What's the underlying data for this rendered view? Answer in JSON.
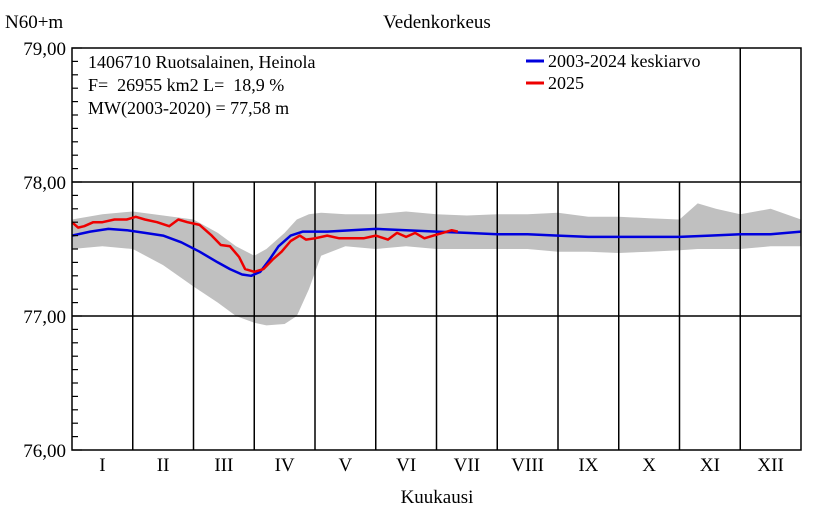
{
  "chart_data": {
    "type": "line",
    "title": "Vedenkorkeus",
    "ylabel": "N60+m",
    "xlabel": "Kuukausi",
    "ylim": [
      76.0,
      79.0
    ],
    "yticks": [
      "79,00",
      "78,00",
      "77,00",
      "76,00"
    ],
    "ytick_values": [
      79.0,
      78.0,
      77.0,
      76.0
    ],
    "months": [
      "I",
      "II",
      "III",
      "IV",
      "V",
      "VI",
      "VII",
      "VIII",
      "IX",
      "X",
      "XI",
      "XII"
    ],
    "info_lines": [
      "1406710 Ruotsalainen, Heinola",
      "F=  26955 km2 L=  18,9 %",
      "MW(2003-2020) = 77,58 m"
    ],
    "grid": true,
    "legend_position": "top-right",
    "series": [
      {
        "name": "2003-2024 keskiarvo",
        "color": "#0000dd",
        "x": [
          0,
          0.3,
          0.6,
          0.9,
          1.2,
          1.5,
          1.8,
          2.1,
          2.4,
          2.6,
          2.8,
          2.95,
          3.1,
          3.25,
          3.4,
          3.6,
          3.8,
          4.0,
          4.2,
          4.6,
          5.0,
          5.5,
          6.0,
          6.5,
          7.0,
          7.5,
          8.0,
          8.5,
          9.0,
          9.5,
          10.0,
          10.5,
          11.0,
          11.5,
          12.0
        ],
        "y": [
          77.6,
          77.63,
          77.65,
          77.64,
          77.62,
          77.6,
          77.55,
          77.48,
          77.4,
          77.35,
          77.31,
          77.3,
          77.33,
          77.42,
          77.52,
          77.6,
          77.63,
          77.63,
          77.63,
          77.64,
          77.65,
          77.64,
          77.63,
          77.62,
          77.61,
          77.61,
          77.6,
          77.59,
          77.59,
          77.59,
          77.59,
          77.6,
          77.61,
          77.61,
          77.63
        ]
      },
      {
        "name": "2025",
        "color": "#ee0000",
        "x": [
          0,
          0.1,
          0.2,
          0.35,
          0.5,
          0.7,
          0.9,
          1.05,
          1.2,
          1.4,
          1.6,
          1.75,
          1.9,
          2.1,
          2.3,
          2.45,
          2.6,
          2.75,
          2.85,
          3.0,
          3.15,
          3.3,
          3.45,
          3.6,
          3.75,
          3.85,
          4.0,
          4.2,
          4.4,
          4.6,
          4.8,
          5.0,
          5.2,
          5.35,
          5.5,
          5.65,
          5.8,
          5.95,
          6.1,
          6.25,
          6.35
        ],
        "y": [
          77.7,
          77.66,
          77.67,
          77.7,
          77.7,
          77.72,
          77.72,
          77.74,
          77.72,
          77.7,
          77.67,
          77.72,
          77.7,
          77.68,
          77.6,
          77.53,
          77.52,
          77.44,
          77.35,
          77.33,
          77.35,
          77.42,
          77.48,
          77.56,
          77.6,
          77.57,
          77.58,
          77.6,
          77.58,
          77.58,
          77.58,
          77.6,
          77.57,
          77.62,
          77.59,
          77.62,
          77.58,
          77.6,
          77.62,
          77.64,
          77.63
        ]
      }
    ],
    "band": {
      "color": "#c0c0c0",
      "x": [
        0,
        0.5,
        1.0,
        1.5,
        2.0,
        2.4,
        2.7,
        3.0,
        3.2,
        3.5,
        3.7,
        3.9,
        4.1,
        4.5,
        5.0,
        5.5,
        6.0,
        6.5,
        7.0,
        7.5,
        8.0,
        8.5,
        9.0,
        9.5,
        10.0,
        10.3,
        10.6,
        11.0,
        11.5,
        12.0
      ],
      "upper": [
        77.72,
        77.76,
        77.78,
        77.75,
        77.72,
        77.62,
        77.52,
        77.45,
        77.5,
        77.62,
        77.72,
        77.76,
        77.77,
        77.76,
        77.76,
        77.78,
        77.76,
        77.75,
        77.76,
        77.76,
        77.77,
        77.74,
        77.74,
        77.73,
        77.72,
        77.84,
        77.8,
        77.76,
        77.8,
        77.72
      ],
      "lower": [
        77.5,
        77.52,
        77.5,
        77.38,
        77.22,
        77.1,
        77.0,
        76.95,
        76.93,
        76.94,
        77.0,
        77.2,
        77.45,
        77.52,
        77.5,
        77.52,
        77.5,
        77.5,
        77.5,
        77.5,
        77.48,
        77.48,
        77.47,
        77.48,
        77.49,
        77.5,
        77.5,
        77.5,
        77.52,
        77.52
      ]
    }
  }
}
